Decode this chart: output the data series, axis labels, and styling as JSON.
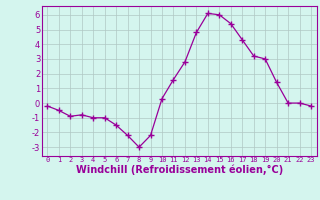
{
  "x": [
    0,
    1,
    2,
    3,
    4,
    5,
    6,
    7,
    8,
    9,
    10,
    11,
    12,
    13,
    14,
    15,
    16,
    17,
    18,
    19,
    20,
    21,
    22,
    23
  ],
  "y": [
    -0.2,
    -0.5,
    -0.9,
    -0.8,
    -1.0,
    -1.0,
    -1.5,
    -2.2,
    -3.0,
    -2.2,
    0.3,
    1.6,
    2.8,
    4.8,
    6.1,
    6.0,
    5.4,
    4.3,
    3.2,
    3.0,
    1.4,
    0.0,
    0.0,
    -0.2
  ],
  "line_color": "#990099",
  "marker": "+",
  "marker_size": 4,
  "marker_lw": 1.0,
  "line_width": 0.9,
  "background_color": "#d4f5ee",
  "grid_color": "#b0c8c4",
  "xlabel": "Windchill (Refroidissement éolien,°C)",
  "xlabel_fontsize": 7,
  "xtick_fontsize": 5,
  "ytick_fontsize": 6,
  "ylabel_ticks": [
    -3,
    -2,
    -1,
    0,
    1,
    2,
    3,
    4,
    5,
    6
  ],
  "xlim": [
    -0.5,
    23.5
  ],
  "ylim": [
    -3.6,
    6.6
  ]
}
